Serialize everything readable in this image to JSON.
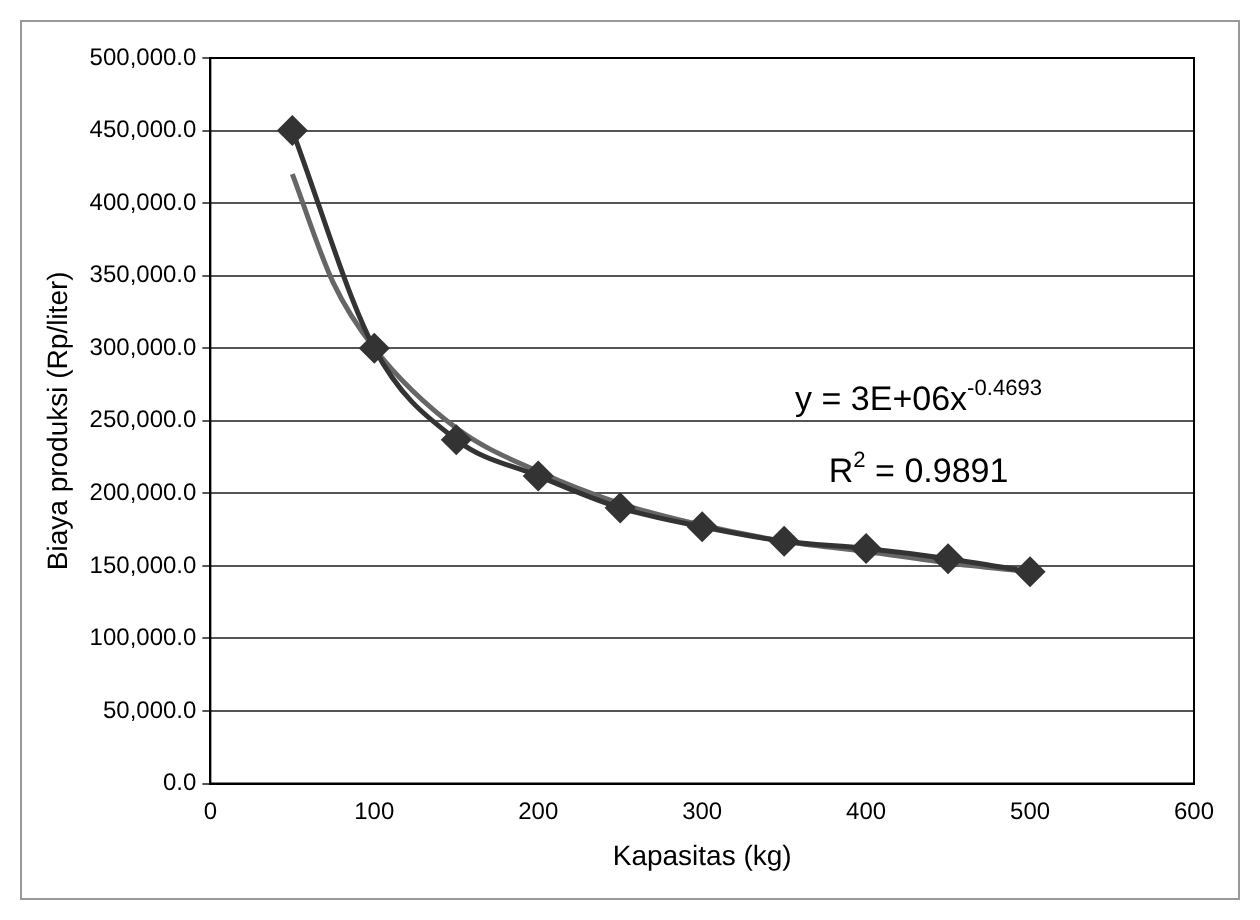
{
  "chart_data": {
    "type": "line",
    "xlabel": "Kapasitas (kg)",
    "ylabel": "Biaya produksi (Rp/liter)",
    "x": [
      50,
      100,
      150,
      200,
      250,
      300,
      350,
      400,
      450,
      500
    ],
    "series": [
      {
        "type": "line",
        "color": "#333333",
        "marker": "diamond",
        "values": [
          450000,
          300000,
          237000,
          212000,
          190000,
          177000,
          167000,
          162000,
          155000,
          146000
        ]
      },
      {
        "type": "line",
        "color": "#666666",
        "marker": "none",
        "x": [
          50,
          75,
          100,
          150,
          200,
          250,
          300,
          350,
          400,
          450,
          500
        ],
        "values": [
          420000,
          345000,
          300000,
          245000,
          215000,
          193000,
          178000,
          167000,
          160000,
          152000,
          146000
        ]
      }
    ],
    "xlim": [
      0,
      600
    ],
    "xticks": [
      0,
      100,
      200,
      300,
      400,
      500,
      600
    ],
    "ylim": [
      0,
      500000
    ],
    "yticks": [
      {
        "value": 0,
        "label": "0.0"
      },
      {
        "value": 50000,
        "label": "50,000.0"
      },
      {
        "value": 100000,
        "label": "100,000.0"
      },
      {
        "value": 150000,
        "label": "150,000.0"
      },
      {
        "value": 200000,
        "label": "200,000.0"
      },
      {
        "value": 250000,
        "label": "250,000.0"
      },
      {
        "value": 300000,
        "label": "300,000.0"
      },
      {
        "value": 350000,
        "label": "350,000.0"
      },
      {
        "value": 400000,
        "label": "400,000.0"
      },
      {
        "value": 450000,
        "label": "450,000.0"
      },
      {
        "value": 500000,
        "label": "500,000.0"
      }
    ],
    "grid": "y",
    "legend": false,
    "annotations": [
      "y = 3E+06x$^{-0.4693}$",
      "R$^{2}$ = 0.9891"
    ]
  }
}
